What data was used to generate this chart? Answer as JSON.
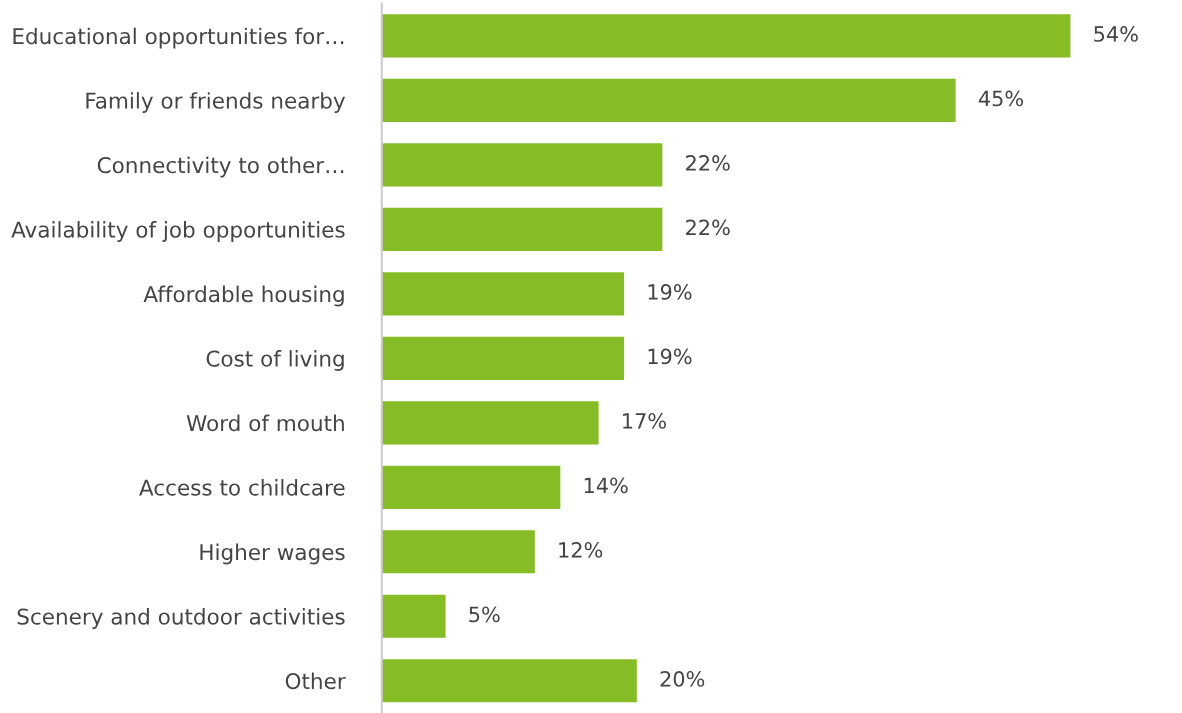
{
  "chart_data": {
    "type": "bar",
    "orientation": "horizontal",
    "categories": [
      "Educational opportunities for…",
      "Family or friends nearby",
      "Connectivity to other…",
      "Availability of job opportunities",
      "Affordable housing",
      "Cost of living",
      "Word of mouth",
      "Access to childcare",
      "Higher wages",
      "Scenery and outdoor activities",
      "Other"
    ],
    "values": [
      54,
      45,
      22,
      22,
      19,
      19,
      17,
      14,
      12,
      5,
      20
    ],
    "value_labels": [
      "54%",
      "45%",
      "22%",
      "22%",
      "19%",
      "19%",
      "17%",
      "14%",
      "12%",
      "5%",
      "20%"
    ],
    "color": "#86bc25",
    "grid": false,
    "legend": false
  }
}
